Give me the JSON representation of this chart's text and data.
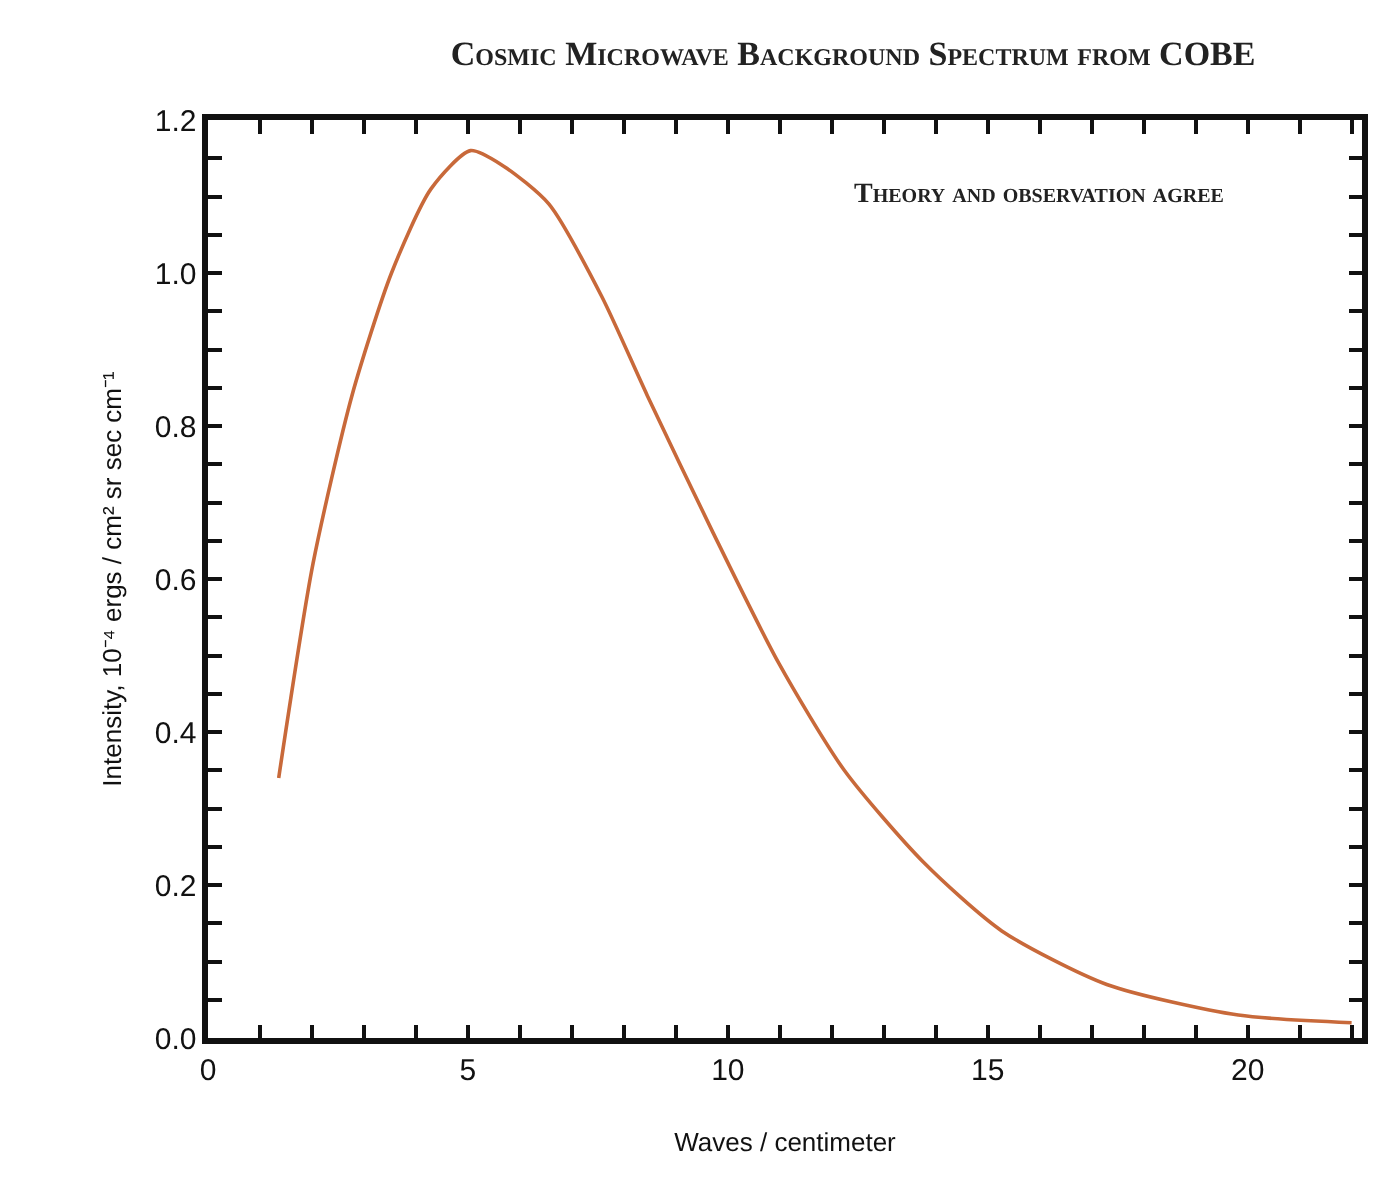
{
  "chart_data": {
    "type": "line",
    "title": "Cosmic Microwave Background Spectrum from COBE",
    "xlabel": "Waves / centimeter",
    "ylabel": "Intensity, 10⁻⁴ ergs / cm² sr sec cm⁻¹",
    "annotations": [
      "Theory and observation agree"
    ],
    "series": [
      {
        "color": "#c8693a",
        "x": [
          1.36,
          2.02,
          2.77,
          3.53,
          4.29,
          5.05,
          5.68,
          6.56,
          7.57,
          8.45,
          9.72,
          10.98,
          12.24,
          13.76,
          15.27,
          17.29,
          19.82,
          22.0
        ],
        "values": [
          0.34,
          0.62,
          0.84,
          1.0,
          1.11,
          1.16,
          1.14,
          1.09,
          0.97,
          0.84,
          0.66,
          0.49,
          0.35,
          0.23,
          0.14,
          0.07,
          0.03,
          0.02
        ]
      }
    ],
    "xlim": [
      0,
      22.2
    ],
    "xticks": [
      0,
      {
        "value": 1,
        "label": null
      },
      {
        "value": 2,
        "label": null
      },
      {
        "value": 3,
        "label": null
      },
      {
        "value": 4,
        "label": null
      },
      5,
      {
        "value": 6,
        "label": null
      },
      {
        "value": 7,
        "label": null
      },
      {
        "value": 8,
        "label": null
      },
      {
        "value": 9,
        "label": null
      },
      10,
      {
        "value": 11,
        "label": null
      },
      {
        "value": 12,
        "label": null
      },
      {
        "value": 13,
        "label": null
      },
      {
        "value": 14,
        "label": null
      },
      15,
      {
        "value": 16,
        "label": null
      },
      {
        "value": 17,
        "label": null
      },
      {
        "value": 18,
        "label": null
      },
      {
        "value": 19,
        "label": null
      },
      20,
      {
        "value": 21,
        "label": null
      },
      {
        "value": 22,
        "label": null
      }
    ],
    "ylim": [
      0,
      1.2
    ],
    "yticks": [
      {
        "value": 0,
        "label": "0.0"
      },
      {
        "value": 0.05,
        "label": null
      },
      {
        "value": 0.1,
        "label": null
      },
      {
        "value": 0.15,
        "label": null
      },
      {
        "value": 0.2,
        "label": "0.2"
      },
      {
        "value": 0.25,
        "label": null
      },
      {
        "value": 0.3,
        "label": null
      },
      {
        "value": 0.35,
        "label": null
      },
      {
        "value": 0.4,
        "label": "0.4"
      },
      {
        "value": 0.45,
        "label": null
      },
      {
        "value": 0.5,
        "label": null
      },
      {
        "value": 0.55,
        "label": null
      },
      {
        "value": 0.6,
        "label": "0.6"
      },
      {
        "value": 0.65,
        "label": null
      },
      {
        "value": 0.7,
        "label": null
      },
      {
        "value": 0.75,
        "label": null
      },
      {
        "value": 0.8,
        "label": "0.8"
      },
      {
        "value": 0.85,
        "label": null
      },
      {
        "value": 0.9,
        "label": null
      },
      {
        "value": 0.95,
        "label": null
      },
      {
        "value": 1.0,
        "label": "1.0"
      },
      {
        "value": 1.05,
        "label": null
      },
      {
        "value": 1.1,
        "label": null
      },
      {
        "value": 1.15,
        "label": null
      },
      {
        "value": 1.2,
        "label": "1.2"
      }
    ],
    "marker": "none",
    "line_style": "solid"
  }
}
